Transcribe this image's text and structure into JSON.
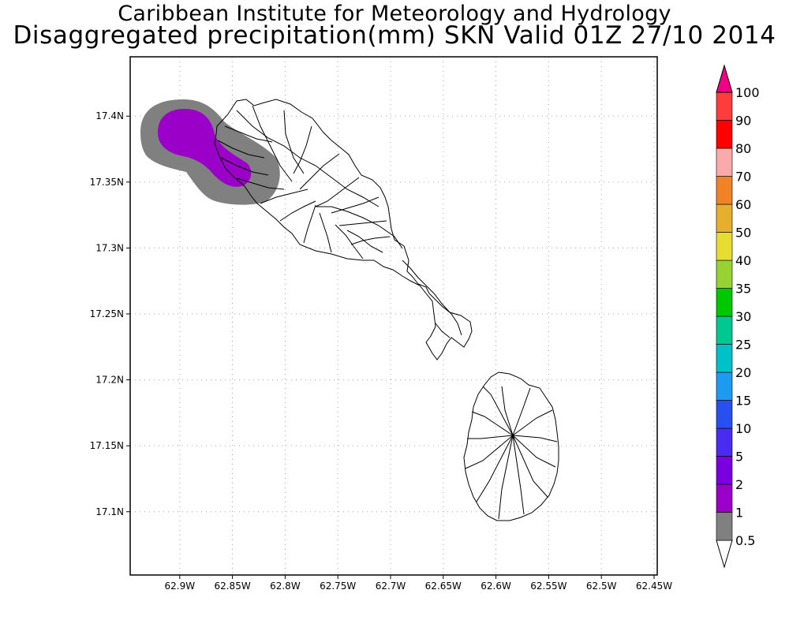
{
  "title": {
    "line1": "Caribbean Institute for Meteorology and Hydrology",
    "line2": "Disaggregated precipitation(mm) SKN Valid 01Z 27/10 2014"
  },
  "chart_data": {
    "type": "heatmap",
    "variable": "precipitation(mm)",
    "region": "SKN",
    "x_ticks": [
      "62.9W",
      "62.85W",
      "62.8W",
      "62.75W",
      "62.7W",
      "62.65W",
      "62.6W",
      "62.55W",
      "62.5W",
      "62.45W"
    ],
    "x_values": [
      -62.9,
      -62.85,
      -62.8,
      -62.75,
      -62.7,
      -62.65,
      -62.6,
      -62.55,
      -62.5,
      -62.45
    ],
    "xlim": [
      -62.947,
      -62.447
    ],
    "y_ticks": [
      "17.4N",
      "17.35N",
      "17.3N",
      "17.25N",
      "17.2N",
      "17.15N",
      "17.1N"
    ],
    "y_values": [
      17.4,
      17.35,
      17.3,
      17.25,
      17.2,
      17.15,
      17.1
    ],
    "ylim": [
      17.052,
      17.445
    ],
    "grid": true,
    "colorbar": {
      "labels": [
        "0.5",
        "1",
        "2",
        "5",
        "10",
        "15",
        "20",
        "25",
        "30",
        "35",
        "40",
        "50",
        "60",
        "70",
        "80",
        "90",
        "100"
      ],
      "colors": [
        "#808080",
        "#9a00c8",
        "#7a00e0",
        "#4a2cf0",
        "#2850f0",
        "#1e9bf0",
        "#00c0c8",
        "#00c890",
        "#00c800",
        "#96d232",
        "#e6dc32",
        "#e6af2d",
        "#f08228",
        "#faaaaa",
        "#ff0000",
        "#ff3c3c",
        "#f00082"
      ]
    },
    "precip_areas": [
      {
        "level": "0.5-1",
        "color": "#808080"
      },
      {
        "level": "1-2",
        "color": "#9a00c8"
      }
    ]
  }
}
